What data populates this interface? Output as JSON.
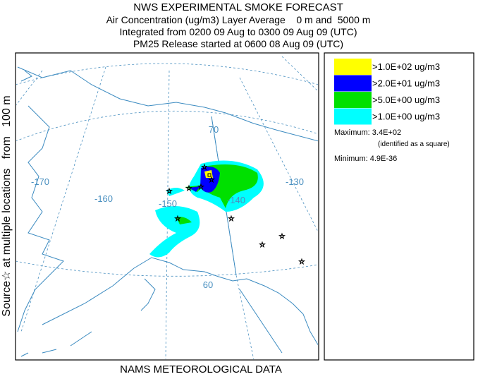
{
  "header": {
    "lines": [
      "NWS EXPERIMENTAL SMOKE FORECAST",
      "Air Concentration (ug/m3) Layer Average    0 m and  5000 m",
      "Integrated from 0200 09 Aug to 0300 09 Aug 09 (UTC)",
      "PM25 Release started at 0600 08 Aug 09 (UTC)"
    ]
  },
  "side_label": "Source☆ at multiple locations   from   100 m",
  "footer": "NAMS METEOROLOGICAL DATA",
  "legend": {
    "items": [
      {
        "label": ">1.0E+02 ug/m3",
        "color": "#ffff00"
      },
      {
        "label": ">2.0E+01 ug/m3",
        "color": "#0000ff"
      },
      {
        "label": ">5.0E+00 ug/m3",
        "color": "#00e000"
      },
      {
        "label": ">1.0E+00 ug/m3",
        "color": "#00ffff"
      }
    ],
    "maximum": "Maximum: 3.4E+02",
    "maximum_note": "(identified as a square)",
    "minimum": "Minimum: 4.9E-36"
  },
  "map": {
    "labels": [
      "-170",
      "-160",
      "-150",
      "-140",
      "-130",
      "70",
      "60"
    ]
  }
}
